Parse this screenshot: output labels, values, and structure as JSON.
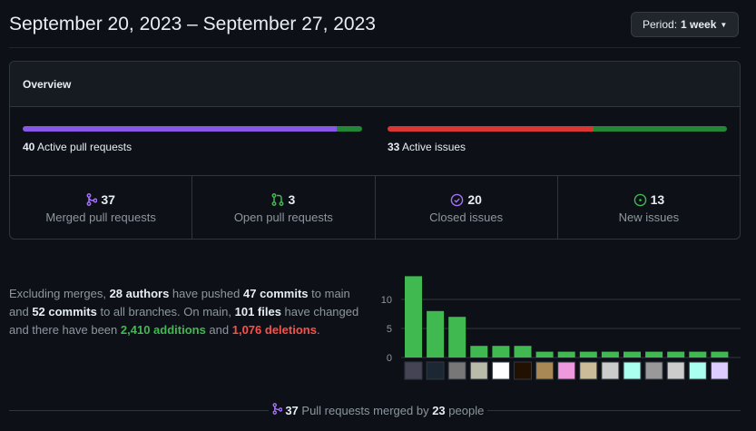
{
  "header": {
    "title": "September 20, 2023 – September 27, 2023",
    "period_label": "Period:",
    "period_value": "1 week"
  },
  "overview": {
    "title": "Overview",
    "pull_requests": {
      "count": "40",
      "label": "Active pull requests",
      "merged_fraction": 0.925
    },
    "issues": {
      "count": "33",
      "label": "Active issues",
      "closed_fraction": 0.606
    },
    "stats": [
      {
        "value": "37",
        "label": "Merged pull requests",
        "icon": "git-merge-icon",
        "color": "#a371f7"
      },
      {
        "value": "3",
        "label": "Open pull requests",
        "icon": "git-pull-request-icon",
        "color": "#3fb950"
      },
      {
        "value": "20",
        "label": "Closed issues",
        "icon": "issue-closed-icon",
        "color": "#a371f7"
      },
      {
        "value": "13",
        "label": "New issues",
        "icon": "issue-opened-icon",
        "color": "#3fb950"
      }
    ]
  },
  "summary": {
    "t1": "Excluding merges, ",
    "authors": "28 authors",
    "t2": " have pushed ",
    "commits_main": "47 commits",
    "t3": " to main and ",
    "commits_all": "52 commits",
    "t4": " to all branches. On main, ",
    "files": "101 files",
    "t5": " have changed and there have been ",
    "additions": "2,410 additions",
    "t6": " and ",
    "deletions": "1,076 deletions",
    "t7": "."
  },
  "chart_data": {
    "type": "bar",
    "values": [
      14,
      8,
      7,
      2,
      2,
      2,
      1,
      1,
      1,
      1,
      1,
      1,
      1,
      1,
      1
    ],
    "ylim": [
      0,
      14
    ],
    "yticks": [
      "0",
      "5",
      "10"
    ],
    "grid": true,
    "bar_color": "#3fb950"
  },
  "footer": {
    "count": "37",
    "t1": " Pull requests merged by ",
    "people": "23",
    "t2": " people"
  },
  "colors": {
    "merged": "#8957e5",
    "open": "#238636",
    "closed_issue": "#da3633",
    "green": "#3fb950"
  }
}
